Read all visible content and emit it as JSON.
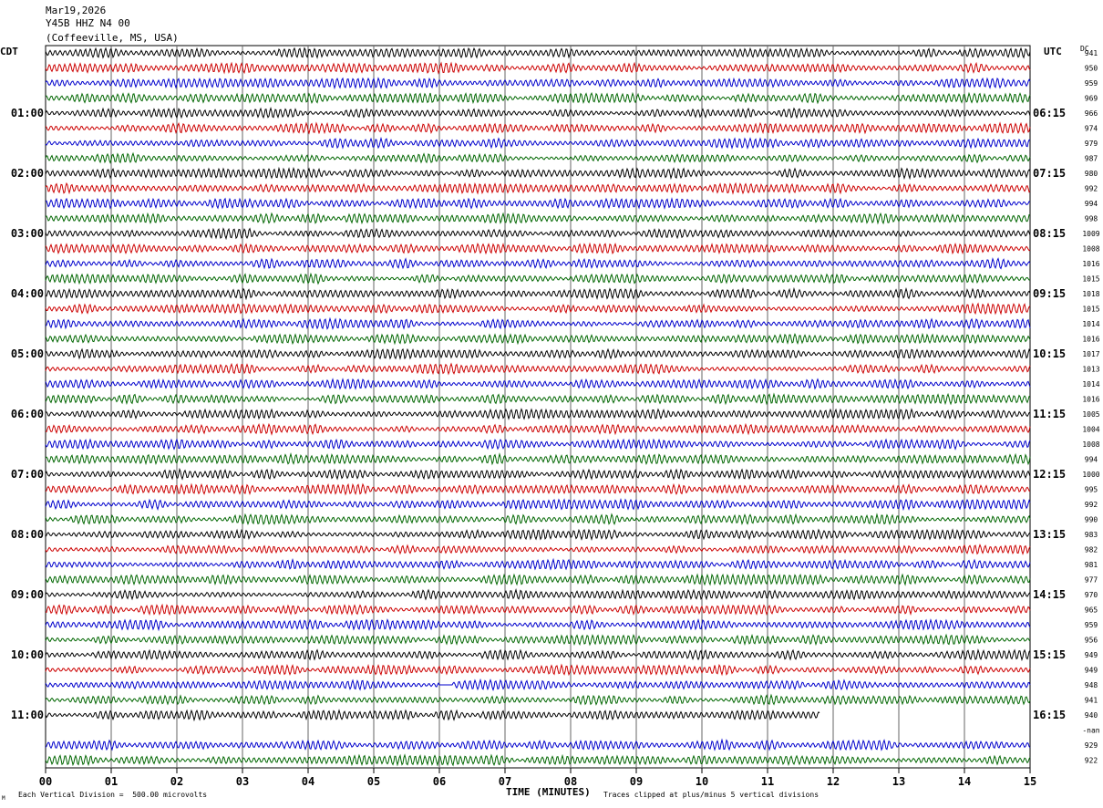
{
  "header": {
    "date": "Mar19,2026",
    "station": "Y45B HHZ N4 00",
    "location": "(Coffeeville, MS, USA)"
  },
  "labels": {
    "left_tz": "CDT",
    "right_tz": "UTC",
    "dc": "DC",
    "corner_mark": "M"
  },
  "footer": {
    "scale_note": "Each Vertical Division =  500.00 microvolts",
    "clip_note": "Traces clipped at plus/minus 5 vertical divisions"
  },
  "chart_data": {
    "type": "helicorder",
    "xlabel": "TIME (MINUTES)",
    "x_ticks": [
      "00",
      "01",
      "02",
      "03",
      "04",
      "05",
      "06",
      "07",
      "08",
      "09",
      "10",
      "11",
      "12",
      "13",
      "14",
      "15"
    ],
    "xlim": [
      0,
      15
    ],
    "trace_colors": [
      "#000000",
      "#cc0000",
      "#0000cc",
      "#006600"
    ],
    "left_hour_labels": [
      "01:00",
      "02:00",
      "03:00",
      "04:00",
      "05:00",
      "06:00",
      "07:00",
      "08:00",
      "09:00",
      "10:00",
      "11:00"
    ],
    "right_hour_labels": [
      "06:15",
      "07:15",
      "08:15",
      "09:15",
      "10:15",
      "11:15",
      "12:15",
      "13:15",
      "14:15",
      "15:15",
      "16:15"
    ],
    "dc_offsets": [
      "941",
      "950",
      "959",
      "969",
      "966",
      "974",
      "979",
      "987",
      "980",
      "992",
      "994",
      "998",
      "1009",
      "1008",
      "1016",
      "1015",
      "1018",
      "1015",
      "1014",
      "1016",
      "1017",
      "1013",
      "1014",
      "1016",
      "1005",
      "1004",
      "1008",
      "994",
      "1000",
      "995",
      "992",
      "990",
      "983",
      "982",
      "981",
      "977",
      "970",
      "965",
      "959",
      "956",
      "949",
      "949",
      "948",
      "941",
      "940",
      "-nan",
      "929",
      "922"
    ],
    "traces_present": [
      true,
      true,
      true,
      true,
      true,
      true,
      true,
      true,
      true,
      true,
      true,
      true,
      true,
      true,
      true,
      true,
      true,
      true,
      true,
      true,
      true,
      true,
      true,
      true,
      true,
      true,
      true,
      true,
      true,
      true,
      true,
      true,
      true,
      true,
      true,
      true,
      true,
      true,
      true,
      true,
      true,
      true,
      true,
      true,
      true,
      false,
      true,
      true
    ],
    "last_trace_end_minute": 11.8,
    "flat_segments": [
      {
        "trace": 42,
        "start_minute": 6.0,
        "end_minute": 6.2
      }
    ]
  }
}
